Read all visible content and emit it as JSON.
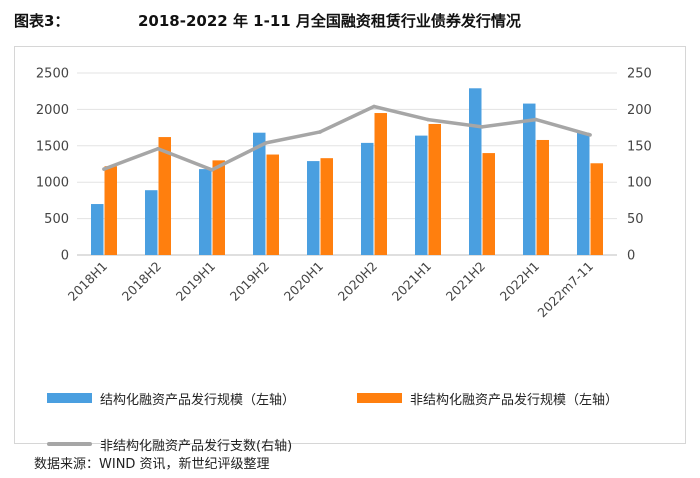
{
  "header": {
    "figure_label": "图表3：",
    "title": "2018-2022 年 1-11 月全国融资租赁行业债券发行情况"
  },
  "source_note": "数据来源：WIND 资讯，新世纪评级整理",
  "colors": {
    "structured": "#4a9fe0",
    "non_structured": "#ff7f0e",
    "count_line": "#a6a6a6"
  },
  "chart_data": {
    "type": "bar",
    "categories": [
      "2018H1",
      "2018H2",
      "2019H1",
      "2019H2",
      "2020H1",
      "2020H2",
      "2021H1",
      "2021H2",
      "2022H1",
      "2022m7-11"
    ],
    "series": [
      {
        "name": "结构化融资产品发行规模（左轴）",
        "type": "bar",
        "axis": "left",
        "values": [
          700,
          890,
          1180,
          1680,
          1290,
          1540,
          1640,
          2290,
          2080,
          1680
        ]
      },
      {
        "name": "非结构化融资产品发行规模（左轴）",
        "type": "bar",
        "axis": "left",
        "values": [
          1220,
          1620,
          1300,
          1380,
          1330,
          1950,
          1800,
          1400,
          1580,
          1260
        ]
      },
      {
        "name": "非结构化融资产品发行支数(右轴)",
        "type": "line",
        "axis": "right",
        "values": [
          118,
          146,
          117,
          154,
          169,
          204,
          186,
          176,
          186,
          165
        ]
      }
    ],
    "y_left": {
      "range": [
        0,
        2500
      ],
      "ticks": [
        "0",
        "500",
        "1000",
        "1500",
        "2000",
        "2500"
      ]
    },
    "y_right": {
      "range": [
        0,
        250
      ],
      "ticks": [
        "0",
        "50",
        "100",
        "150",
        "200",
        "250"
      ]
    },
    "grid": true,
    "legend_position": "bottom"
  }
}
